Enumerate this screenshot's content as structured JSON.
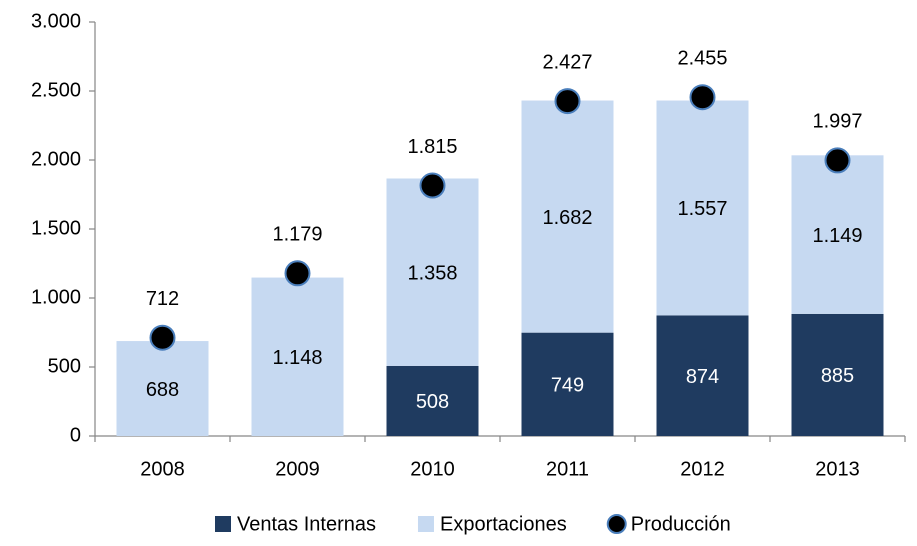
{
  "chart_data": {
    "type": "stacked-bar-with-points",
    "categories": [
      "2008",
      "2009",
      "2010",
      "2011",
      "2012",
      "2013"
    ],
    "series": [
      {
        "name": "Ventas Internas",
        "type": "bar",
        "color": "#1f3b60",
        "label_color": "#ffffff",
        "values": [
          null,
          null,
          508,
          749,
          874,
          885
        ],
        "value_labels": [
          null,
          null,
          "508",
          "749",
          "874",
          "885"
        ]
      },
      {
        "name": "Exportaciones",
        "type": "bar",
        "color": "#c6d9f1",
        "label_color": "#000000",
        "values": [
          688,
          1148,
          1358,
          1682,
          1557,
          1149
        ],
        "value_labels": [
          "688",
          "1.148",
          "1.358",
          "1.682",
          "1.557",
          "1.149"
        ]
      },
      {
        "name": "Producción",
        "type": "point",
        "color": "#000000",
        "edge_color": "#4a7ebb",
        "values": [
          712,
          1179,
          1815,
          2427,
          2455,
          1997
        ],
        "value_labels": [
          "712",
          "1.179",
          "1.815",
          "2.427",
          "2.455",
          "1.997"
        ]
      }
    ],
    "ylim": [
      0,
      3000
    ],
    "yticks": [
      0,
      500,
      {
        "value": 1000,
        "label": "1.000"
      },
      {
        "value": 1500,
        "label": "1.500"
      },
      {
        "value": 2000,
        "label": "2.000"
      },
      {
        "value": 2500,
        "label": "2.500"
      },
      {
        "value": 3000,
        "label": "3.000"
      }
    ],
    "grid": false,
    "legend": "bottom"
  }
}
